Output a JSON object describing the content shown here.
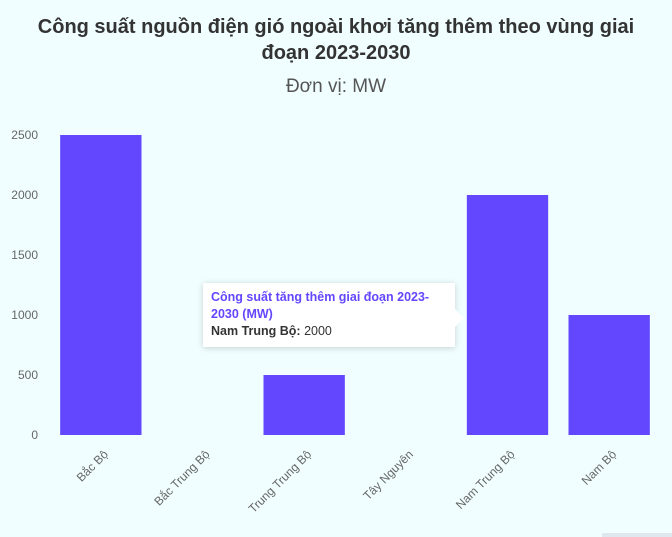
{
  "chart_data": {
    "type": "bar",
    "title": "Công suất nguồn điện gió ngoài khơi tăng thêm theo vùng giai đoạn 2023-2030",
    "subtitle": "Đơn vị: MW",
    "categories": [
      "Bắc Bộ",
      "Bắc Trung Bộ",
      "Trung Trung Bộ",
      "Tây Nguyên",
      "Nam Trung Bộ",
      "Nam Bộ"
    ],
    "series": [
      {
        "name": "Công suất tăng thêm giai đoạn 2023-2030 (MW)",
        "values": [
          2500,
          0,
          500,
          0,
          2000,
          1000
        ]
      }
    ],
    "yticks": [
      0,
      500,
      1000,
      1500,
      2000,
      2500
    ],
    "ylim": [
      0,
      2500
    ],
    "grid": false,
    "bar_color": "#6347ff"
  },
  "tooltip": {
    "title": "Công suất tăng thêm giai đoạn 2023-2030 (MW)",
    "label": "Nam Trung Bộ:",
    "value": "2000"
  }
}
